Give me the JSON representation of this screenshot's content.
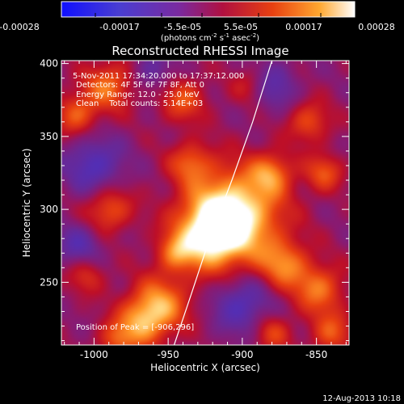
{
  "colorbar": {
    "ticks": [
      "-0.00028",
      "-0.00017",
      "-5.5e-05",
      "5.5e-05",
      "0.00017",
      "0.00028"
    ],
    "units_main": "(photons cm",
    "units_exp1": "-2",
    "units_mid": " s",
    "units_exp2": "-1",
    "units_tail": " asec",
    "units_exp3": "-2",
    "units_close": ")"
  },
  "title": "Reconstructed RHESSI Image",
  "info": {
    "line1": "5-Nov-2011 17:34:20.000 to 17:37:12.000",
    "line2": "Detectors: 4F 5F 6F 7F 8F, Att 0",
    "line3": "Energy Range: 12.0 - 25.0 keV",
    "line4": "Clean    Total counts: 5.14E+03",
    "peak": "Position of Peak = [-906,296]"
  },
  "footer_timestamp": "12-Aug-2013 10:18",
  "colors": {
    "background": "#000000",
    "axes": "#ffffff",
    "limb_line": "#ffffff",
    "colormap": [
      "#1010ff",
      "#5a3fb0",
      "#8a2090",
      "#c01030",
      "#e84010",
      "#ff9020",
      "#ffffff"
    ]
  },
  "chart_data": {
    "type": "heatmap",
    "title": "Reconstructed RHESSI Image",
    "xlabel": "Heliocentric X (arcsec)",
    "ylabel": "Heliocentric Y (arcsec)",
    "xlim": [
      -1022,
      -828
    ],
    "ylim": [
      207,
      402
    ],
    "xticks": [
      -1000,
      -950,
      -900,
      -850
    ],
    "yticks": [
      250,
      300,
      350,
      400
    ],
    "xtick_labels": [
      "-1000",
      "-950",
      "-900",
      "-850"
    ],
    "ytick_labels": [
      "250",
      "300",
      "350",
      "400"
    ],
    "colorbar_range": [
      -0.00028,
      0.00028
    ],
    "peak_position": [
      -906,
      296
    ],
    "sources": [
      {
        "x": -906,
        "y": 296,
        "strength": 1.0,
        "sigma": 22
      },
      {
        "x": -922,
        "y": 282,
        "strength": 0.7,
        "sigma": 16
      },
      {
        "x": -955,
        "y": 235,
        "strength": 0.6,
        "sigma": 14
      },
      {
        "x": -968,
        "y": 222,
        "strength": 0.55,
        "sigma": 12
      },
      {
        "x": -990,
        "y": 385,
        "strength": 0.55,
        "sigma": 12
      },
      {
        "x": -1012,
        "y": 365,
        "strength": 0.5,
        "sigma": 10
      },
      {
        "x": -940,
        "y": 375,
        "strength": 0.45,
        "sigma": 11
      },
      {
        "x": -935,
        "y": 332,
        "strength": 0.45,
        "sigma": 10
      },
      {
        "x": -990,
        "y": 300,
        "strength": 0.5,
        "sigma": 11
      },
      {
        "x": -945,
        "y": 270,
        "strength": 0.45,
        "sigma": 9
      },
      {
        "x": -880,
        "y": 325,
        "strength": 0.5,
        "sigma": 10
      },
      {
        "x": -855,
        "y": 360,
        "strength": 0.45,
        "sigma": 10
      },
      {
        "x": -845,
        "y": 325,
        "strength": 0.45,
        "sigma": 9
      },
      {
        "x": -872,
        "y": 262,
        "strength": 0.55,
        "sigma": 12
      },
      {
        "x": -848,
        "y": 245,
        "strength": 0.55,
        "sigma": 12
      },
      {
        "x": -840,
        "y": 215,
        "strength": 0.45,
        "sigma": 10
      },
      {
        "x": -880,
        "y": 215,
        "strength": 0.4,
        "sigma": 9
      },
      {
        "x": -1005,
        "y": 255,
        "strength": 0.35,
        "sigma": 9
      },
      {
        "x": -985,
        "y": 210,
        "strength": 0.4,
        "sigma": 9
      },
      {
        "x": -895,
        "y": 385,
        "strength": 0.3,
        "sigma": 9
      },
      {
        "x": -1000,
        "y": 330,
        "strength": -0.45,
        "sigma": 14
      },
      {
        "x": -880,
        "y": 385,
        "strength": -0.35,
        "sigma": 12
      },
      {
        "x": -900,
        "y": 235,
        "strength": -0.45,
        "sigma": 14
      },
      {
        "x": -1010,
        "y": 275,
        "strength": -0.35,
        "sigma": 11
      },
      {
        "x": -960,
        "y": 395,
        "strength": -0.3,
        "sigma": 10
      }
    ],
    "limb_curve": [
      [
        -946,
        207
      ],
      [
        -935,
        240
      ],
      [
        -922,
        280
      ],
      [
        -907,
        320
      ],
      [
        -893,
        360
      ],
      [
        -880,
        402
      ]
    ],
    "grid": false
  }
}
